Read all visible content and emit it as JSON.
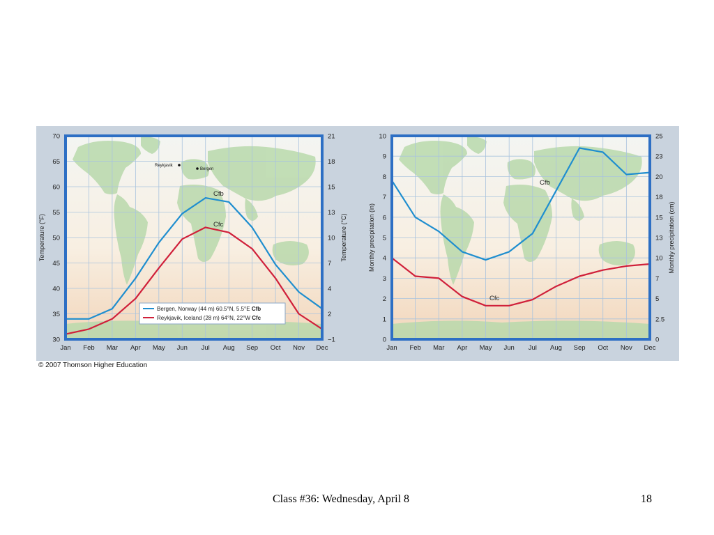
{
  "slide": {
    "footer_title": "Class #36: Wednesday, April 8",
    "page_number": "18",
    "credit": "© 2007 Thomson Higher Education"
  },
  "colors": {
    "cfb": "#1f8ecf",
    "cfc": "#d0203a",
    "frame": "#2d6fc4",
    "grid": "#a9c3de",
    "land": "#b9d9ac"
  },
  "chart_data": [
    {
      "type": "line",
      "categories": [
        "Jan",
        "Feb",
        "Mar",
        "Apr",
        "May",
        "Jun",
        "Jul",
        "Aug",
        "Sep",
        "Oct",
        "Nov",
        "Dec"
      ],
      "ylabel": "Temperature (°F)",
      "ylabel_right": "Temperature (°C)",
      "ylim": [
        30,
        70
      ],
      "yticks": [
        "30",
        "35",
        "40",
        "45",
        "50",
        "55",
        "60",
        "65",
        "70"
      ],
      "yticks_right": [
        "−1",
        "2",
        "4",
        "7",
        "10",
        "13",
        "15",
        "18",
        "21"
      ],
      "grid": true,
      "legend_position": "bottom-center",
      "series": [
        {
          "name": "Bergen, Norway (44 m) 60.5°N, 5.5°E",
          "climate": "Cfb",
          "color": "#1f8ecf",
          "values": [
            34,
            34,
            36,
            42,
            49,
            54.7,
            57.8,
            57,
            52,
            44.7,
            39.3,
            36
          ]
        },
        {
          "name": "Reykjavik, Iceland (28 m) 64°N, 22°W",
          "climate": "Cfc",
          "color": "#d0203a",
          "values": [
            31,
            32,
            34,
            38,
            44,
            49.7,
            52,
            51,
            47.8,
            42,
            35,
            32
          ]
        }
      ],
      "annotations": [
        "Cfb",
        "Cfc"
      ],
      "map_labels": [
        "Reykjavik",
        "Bergen"
      ]
    },
    {
      "type": "line",
      "categories": [
        "Jan",
        "Feb",
        "Mar",
        "Apr",
        "May",
        "Jun",
        "Jul",
        "Aug",
        "Sep",
        "Oct",
        "Nov",
        "Dec"
      ],
      "ylabel": "Monthly precipitation (in)",
      "ylabel_right": "Monthly precipitation (cm)",
      "ylim": [
        0,
        10
      ],
      "yticks": [
        "0",
        "1",
        "2",
        "3",
        "4",
        "5",
        "6",
        "7",
        "8",
        "9",
        "10"
      ],
      "yticks_right": [
        "0",
        "2.5",
        "5",
        "7",
        "10",
        "13",
        "15",
        "18",
        "20",
        "23",
        "25"
      ],
      "grid": true,
      "series": [
        {
          "name": "Bergen",
          "climate": "Cfb",
          "color": "#1f8ecf",
          "values": [
            7.8,
            6.0,
            5.3,
            4.3,
            3.9,
            4.3,
            5.2,
            7.3,
            9.4,
            9.2,
            8.1,
            8.2
          ]
        },
        {
          "name": "Reykjavik",
          "climate": "Cfc",
          "color": "#d0203a",
          "values": [
            4.0,
            3.1,
            3.0,
            2.1,
            1.65,
            1.65,
            1.95,
            2.6,
            3.1,
            3.4,
            3.6,
            3.7
          ]
        }
      ],
      "annotations": [
        "Cfb",
        "Cfc"
      ]
    }
  ]
}
